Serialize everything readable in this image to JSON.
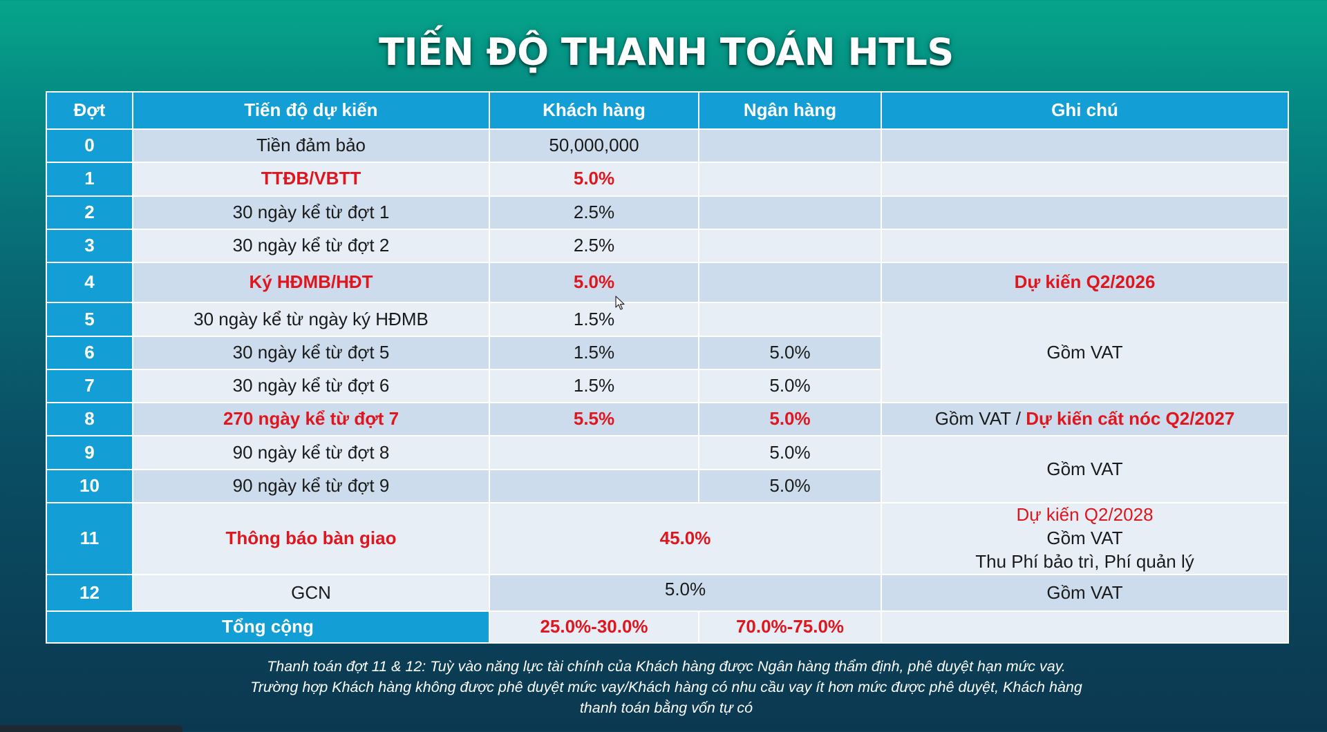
{
  "title": "TIẾN ĐỘ THANH TOÁN HTLS",
  "table": {
    "headers": {
      "dot": "Đợt",
      "tien_do": "Tiến độ dự kiến",
      "khach_hang": "Khách hàng",
      "ngan_hang": "Ngân hàng",
      "ghi_chu": "Ghi chú"
    },
    "rows": [
      {
        "dot": "0",
        "tien_do": "Tiền đảm bảo",
        "khach_hang": "50,000,000",
        "ngan_hang": "",
        "ghi_chu": ""
      },
      {
        "dot": "1",
        "tien_do": "TTĐB/VBTT",
        "khach_hang": "5.0%",
        "ngan_hang": "",
        "ghi_chu": ""
      },
      {
        "dot": "2",
        "tien_do": "30 ngày kể từ đợt 1",
        "khach_hang": "2.5%",
        "ngan_hang": "",
        "ghi_chu": ""
      },
      {
        "dot": "3",
        "tien_do": "30 ngày kể từ đợt 2",
        "khach_hang": "2.5%",
        "ngan_hang": "",
        "ghi_chu": ""
      },
      {
        "dot": "4",
        "tien_do": "Ký HĐMB/HĐT",
        "khach_hang": "5.0%",
        "ngan_hang": "",
        "ghi_chu": "Dự kiến Q2/2026"
      },
      {
        "dot": "5",
        "tien_do": "30 ngày kể từ ngày ký HĐMB",
        "khach_hang": "1.5%",
        "ngan_hang": ""
      },
      {
        "dot": "6",
        "tien_do": "30 ngày kể từ đợt 5",
        "khach_hang": "1.5%",
        "ngan_hang": "5.0%"
      },
      {
        "dot": "7",
        "tien_do": "30 ngày kể từ đợt 6",
        "khach_hang": "1.5%",
        "ngan_hang": "5.0%"
      },
      {
        "dot": "8",
        "tien_do": "270 ngày kể từ đợt 7",
        "khach_hang": "5.5%",
        "ngan_hang": "5.0%",
        "ghi_chu_a": "Gồm VAT / ",
        "ghi_chu_b": "Dự kiến cất nóc Q2/2027"
      },
      {
        "dot": "9",
        "tien_do": "90 ngày kể từ đợt 8",
        "khach_hang": "",
        "ngan_hang": "5.0%"
      },
      {
        "dot": "10",
        "tien_do": "90 ngày kể từ đợt 9",
        "khach_hang": "",
        "ngan_hang": "5.0%"
      },
      {
        "dot": "11",
        "tien_do": "Thông báo bàn giao",
        "merged_value": "45.0%",
        "ghi_chu_line1": "Dự kiến Q2/2028",
        "ghi_chu_line2": "Gồm VAT",
        "ghi_chu_line3": "Thu Phí bảo trì, Phí quản lý"
      },
      {
        "dot": "12",
        "tien_do": "GCN",
        "merged_value": "5.0%",
        "ghi_chu": "Gồm VAT"
      }
    ],
    "merged_notes": {
      "rows_5_7": "Gồm VAT",
      "rows_9_10": "Gồm VAT"
    },
    "total": {
      "label": "Tổng cộng",
      "khach_hang": "25.0%-30.0%",
      "ngan_hang": "70.0%-75.0%",
      "ghi_chu": ""
    }
  },
  "footnote": {
    "line1": "Thanh toán đợt 11 & 12: Tuỳ vào năng lực tài chính của Khách hàng được Ngân hàng thẩm định, phê duyệt hạn mức vay.",
    "line2": "Trường hợp Khách hàng không được phê duyệt mức vay/Khách hàng có nhu cầu vay ít hơn mức được phê duyệt, Khách hàng",
    "line3": "thanh toán bằng vốn tự có"
  },
  "colors": {
    "header_blue": "#139fd6",
    "row_shade": "#ccdcec",
    "row_light": "#e7eef6",
    "highlight_red": "#e0161e"
  }
}
